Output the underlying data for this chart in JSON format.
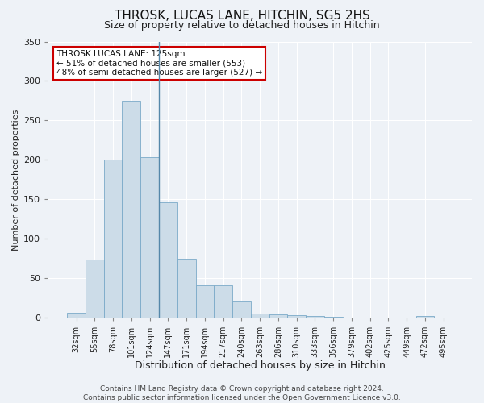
{
  "title": "THROSK, LUCAS LANE, HITCHIN, SG5 2HS",
  "subtitle": "Size of property relative to detached houses in Hitchin",
  "xlabel": "Distribution of detached houses by size in Hitchin",
  "ylabel": "Number of detached properties",
  "bar_labels": [
    "32sqm",
    "55sqm",
    "78sqm",
    "101sqm",
    "124sqm",
    "147sqm",
    "171sqm",
    "194sqm",
    "217sqm",
    "240sqm",
    "263sqm",
    "286sqm",
    "310sqm",
    "333sqm",
    "356sqm",
    "379sqm",
    "402sqm",
    "425sqm",
    "449sqm",
    "472sqm",
    "495sqm"
  ],
  "bar_values": [
    7,
    74,
    200,
    275,
    204,
    146,
    75,
    41,
    41,
    21,
    6,
    5,
    4,
    2,
    1,
    0,
    0,
    0,
    0,
    2,
    0
  ],
  "bar_color": "#ccdce8",
  "bar_edge_color": "#7aaac8",
  "ylim": [
    0,
    350
  ],
  "yticks": [
    0,
    50,
    100,
    150,
    200,
    250,
    300,
    350
  ],
  "property_line_index": 4,
  "annotation_title": "THROSK LUCAS LANE: 125sqm",
  "annotation_line1": "← 51% of detached houses are smaller (553)",
  "annotation_line2": "48% of semi-detached houses are larger (527) →",
  "annotation_box_facecolor": "#ffffff",
  "annotation_box_edgecolor": "#cc0000",
  "footer1": "Contains HM Land Registry data © Crown copyright and database right 2024.",
  "footer2": "Contains public sector information licensed under the Open Government Licence v3.0.",
  "bg_color": "#eef2f7",
  "grid_color": "#ffffff",
  "property_line_color": "#5588aa"
}
